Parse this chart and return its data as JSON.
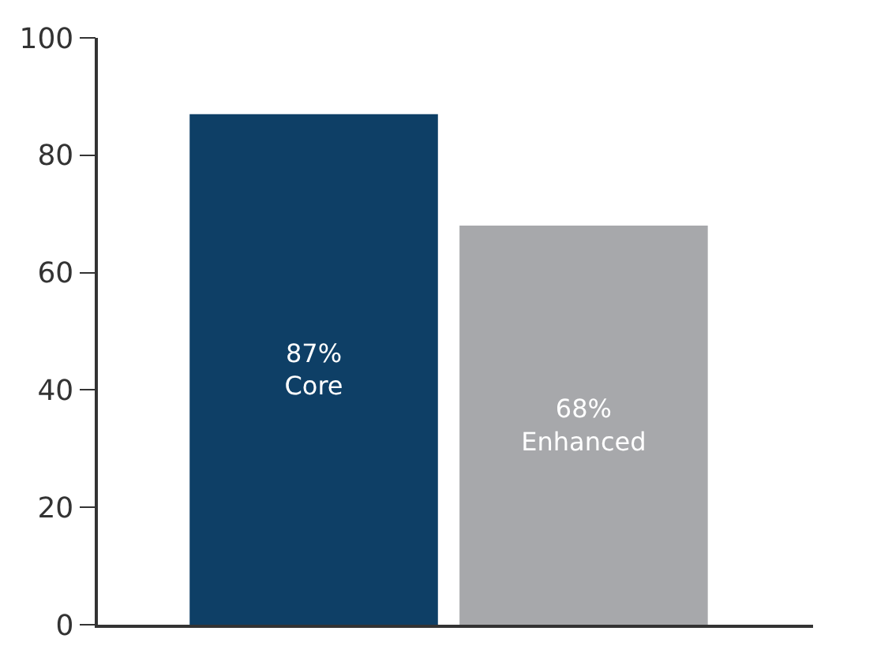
{
  "chart_data": {
    "type": "bar",
    "categories": [
      "Core",
      "Enhanced"
    ],
    "values": [
      87,
      68
    ],
    "colors": [
      "#0e3f66",
      "#a7a8ab"
    ],
    "value_labels": [
      "87%",
      "68%"
    ],
    "ylim": [
      0,
      100
    ],
    "yticks": [
      0,
      20,
      40,
      60,
      80,
      100
    ],
    "grid": false,
    "tick_labels": "y"
  }
}
